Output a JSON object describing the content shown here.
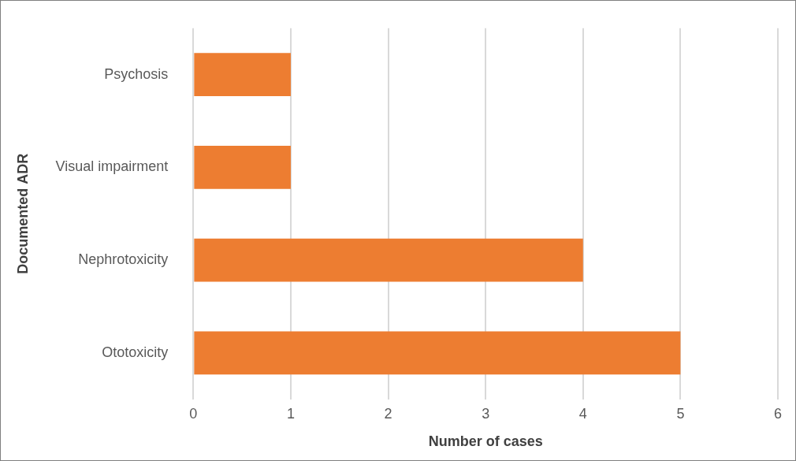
{
  "chart_data": {
    "type": "bar",
    "orientation": "horizontal",
    "xlabel": "Number of cases",
    "ylabel": "Documented ADR",
    "categories": [
      "Psychosis",
      "Visual impairment",
      "Nephrotoxicity",
      "Ototoxicity"
    ],
    "values": [
      1,
      1,
      4,
      5
    ],
    "color": "#ed7d31",
    "xlim": [
      0,
      6
    ],
    "xticks": [
      0,
      1,
      2,
      3,
      4,
      5,
      6
    ],
    "grid": true
  }
}
